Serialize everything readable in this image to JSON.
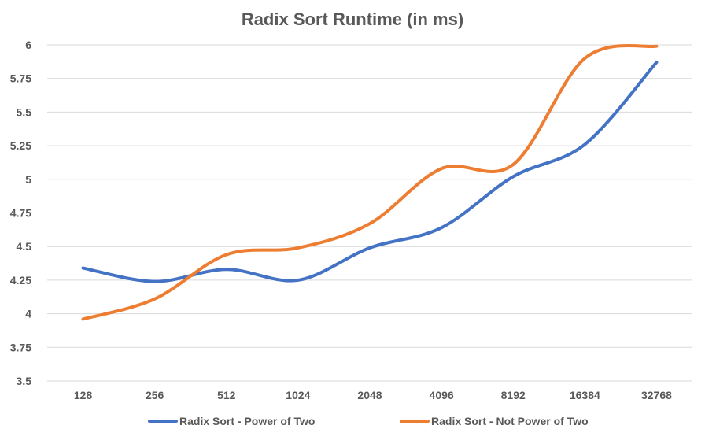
{
  "chart_data": {
    "type": "line",
    "title": "Radix Sort Runtime (in ms)",
    "xlabel": "",
    "ylabel": "",
    "categories": [
      "128",
      "256",
      "512",
      "1024",
      "2048",
      "4096",
      "8192",
      "16384",
      "32768"
    ],
    "series": [
      {
        "name": "Radix Sort - Power of Two",
        "color": "#4472c4",
        "values": [
          4.34,
          4.24,
          4.33,
          4.25,
          4.49,
          4.64,
          5.02,
          5.26,
          5.87
        ]
      },
      {
        "name": "Radix Sort - Not Power of Two",
        "color": "#ed7d31",
        "values": [
          3.96,
          4.11,
          4.44,
          4.49,
          4.67,
          5.08,
          5.11,
          5.9,
          5.99
        ]
      }
    ],
    "ylim": [
      3.5,
      6
    ],
    "ytick_labels": [
      "3.5",
      "3.75",
      "4",
      "4.25",
      "4.5",
      "4.75",
      "5",
      "5.25",
      "5.5",
      "5.75",
      "6"
    ],
    "smooth": true,
    "grid": true,
    "legend_position": "bottom"
  }
}
